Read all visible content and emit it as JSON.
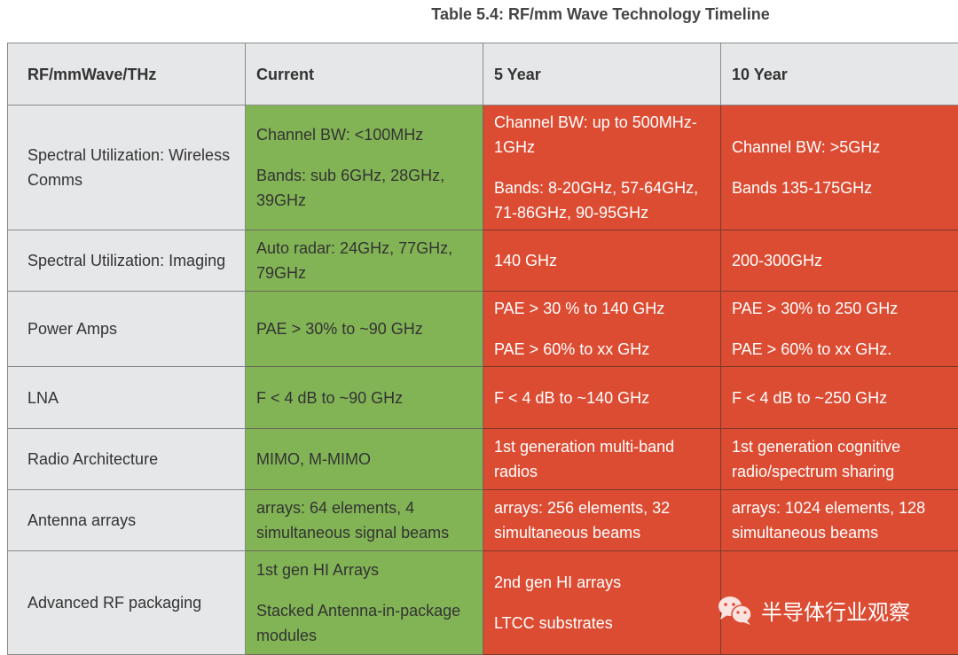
{
  "title": "Table 5.4: RF/mm Wave Technology Timeline",
  "headers": [
    "RF/mmWave/THz",
    "Current",
    "5 Year",
    "10 Year"
  ],
  "colors": {
    "header": "#e6e7e9",
    "current": "#82b455",
    "future": "#dc4c33"
  },
  "rows": [
    {
      "label": "Spectral Utilization: Wireless Comms",
      "current": [
        "Channel BW: <100MHz",
        "Bands: sub 6GHz, 28GHz, 39GHz"
      ],
      "y5": [
        "Channel BW: up to 500MHz-1GHz",
        "Bands: 8-20GHz, 57-64GHz, 71-86GHz, 90-95GHz"
      ],
      "y10": [
        "Channel BW: >5GHz",
        "Bands 135-175GHz"
      ]
    },
    {
      "label": "Spectral Utilization: Imaging",
      "current": [
        "Auto radar: 24GHz, 77GHz, 79GHz"
      ],
      "y5": [
        "140 GHz"
      ],
      "y10": [
        "200-300GHz"
      ]
    },
    {
      "label": "Power Amps",
      "current": [
        "PAE > 30% to ~90 GHz"
      ],
      "y5": [
        "PAE > 30 % to 140 GHz",
        "PAE > 60% to xx GHz"
      ],
      "y10": [
        "PAE > 30% to 250 GHz",
        "PAE > 60% to xx GHz."
      ]
    },
    {
      "label": "LNA",
      "current": [
        "F < 4 dB to ~90 GHz"
      ],
      "y5": [
        "F < 4 dB to ~140 GHz"
      ],
      "y10": [
        "F < 4 dB to ~250 GHz"
      ]
    },
    {
      "label": "Radio Architecture",
      "current": [
        "MIMO, M-MIMO"
      ],
      "y5": [
        "1st generation multi-band radios"
      ],
      "y10": [
        "1st generation cognitive radio/spectrum sharing"
      ]
    },
    {
      "label": "Antenna arrays",
      "current": [
        "arrays: 64 elements, 4 simultaneous signal beams"
      ],
      "y5": [
        "arrays: 256 elements, 32 simultaneous beams"
      ],
      "y10": [
        "arrays: 1024 elements, 128 simultaneous beams"
      ]
    },
    {
      "label": "Advanced RF packaging",
      "current": [
        "1st gen HI Arrays",
        "Stacked Antenna-in-package modules"
      ],
      "y5": [
        "2nd gen HI arrays",
        "LTCC substrates"
      ],
      "y10": []
    }
  ],
  "watermark": "半导体行业观察"
}
